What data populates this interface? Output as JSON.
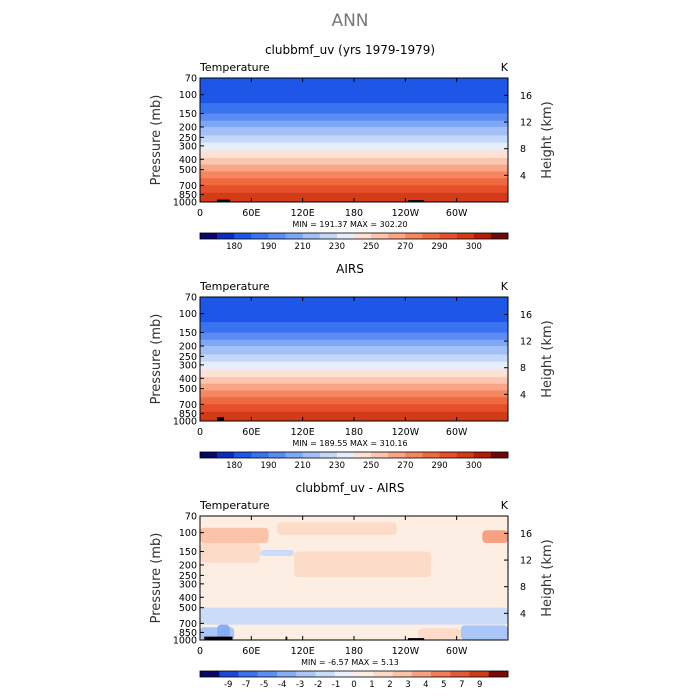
{
  "figure_title": "ANN",
  "colors": {
    "full_field_palette": [
      "#08086b",
      "#0a2dbd",
      "#1e56e8",
      "#3a73f0",
      "#5a8cf3",
      "#7ea7f5",
      "#a2c0f7",
      "#c4d8f9",
      "#e6eefc",
      "#fde2d5",
      "#fbc5ae",
      "#f8a685",
      "#f5865f",
      "#f06a40",
      "#e5502a",
      "#d33a18",
      "#b01e0b",
      "#6e0a06"
    ],
    "difference_palette": [
      "#08086b",
      "#1e46d8",
      "#3c73ee",
      "#5c8ff2",
      "#86adf5",
      "#aac6f8",
      "#cbdcf9",
      "#e8f0fc",
      "#fdeee3",
      "#fcdcc8",
      "#fbc3a8",
      "#f8a182",
      "#f27c58",
      "#e35a36",
      "#cf3a1a",
      "#7a0a06"
    ]
  },
  "chart_data": [
    {
      "type": "heatmap",
      "title": "clubbmf_uv (yrs 1979-1979)",
      "left_label": "Temperature",
      "right_label": "K",
      "ylabel": "Pressure (mb)",
      "ylabel_right": "Height (km)",
      "x_ticks": [
        "0",
        "60E",
        "120E",
        "180",
        "120W",
        "60W"
      ],
      "y_ticks": [
        "70",
        "100",
        "150",
        "200",
        "250",
        "300",
        "400",
        "500",
        "700",
        "850",
        "1000"
      ],
      "y_right_ticks": [
        "4",
        "8",
        "12",
        "16"
      ],
      "stats_text": "MIN = 191.37   MAX = 302.20",
      "colorbar_ticks": [
        "180",
        "190",
        "210",
        "230",
        "250",
        "270",
        "290",
        "300"
      ],
      "colorbar_palette": "full_field_palette",
      "min": 191.37,
      "max": 302.2,
      "temperature_profile": [
        {
          "p": 70,
          "color_index": 2
        },
        {
          "p": 100,
          "color_index": 2
        },
        {
          "p": 120,
          "color_index": 3
        },
        {
          "p": 150,
          "color_index": 4
        },
        {
          "p": 175,
          "color_index": 5
        },
        {
          "p": 200,
          "color_index": 6
        },
        {
          "p": 240,
          "color_index": 7
        },
        {
          "p": 280,
          "color_index": 8
        },
        {
          "p": 330,
          "color_index": 9
        },
        {
          "p": 390,
          "color_index": 10
        },
        {
          "p": 450,
          "color_index": 11
        },
        {
          "p": 520,
          "color_index": 12
        },
        {
          "p": 600,
          "color_index": 13
        },
        {
          "p": 700,
          "color_index": 14
        },
        {
          "p": 820,
          "color_index": 15
        },
        {
          "p": 1000,
          "color_index": 15
        }
      ],
      "terrain": [
        {
          "lon_from": 20,
          "lon_to": 35,
          "top_p": 950
        },
        {
          "lon_from": 243,
          "lon_to": 262,
          "top_p": 960
        }
      ]
    },
    {
      "type": "heatmap",
      "title": "AIRS",
      "left_label": "Temperature",
      "right_label": "K",
      "ylabel": "Pressure (mb)",
      "ylabel_right": "Height (km)",
      "x_ticks": [
        "0",
        "60E",
        "120E",
        "180",
        "120W",
        "60W"
      ],
      "y_ticks": [
        "70",
        "100",
        "150",
        "200",
        "250",
        "300",
        "400",
        "500",
        "700",
        "850",
        "1000"
      ],
      "y_right_ticks": [
        "4",
        "8",
        "12",
        "16"
      ],
      "stats_text": "MIN = 189.55   MAX = 310.16",
      "colorbar_ticks": [
        "180",
        "190",
        "210",
        "230",
        "250",
        "270",
        "290",
        "300"
      ],
      "colorbar_palette": "full_field_palette",
      "min": 189.55,
      "max": 310.16,
      "temperature_profile": [
        {
          "p": 70,
          "color_index": 2
        },
        {
          "p": 100,
          "color_index": 2
        },
        {
          "p": 120,
          "color_index": 3
        },
        {
          "p": 150,
          "color_index": 4
        },
        {
          "p": 175,
          "color_index": 5
        },
        {
          "p": 200,
          "color_index": 6
        },
        {
          "p": 240,
          "color_index": 7
        },
        {
          "p": 280,
          "color_index": 8
        },
        {
          "p": 330,
          "color_index": 9
        },
        {
          "p": 390,
          "color_index": 10
        },
        {
          "p": 450,
          "color_index": 11
        },
        {
          "p": 520,
          "color_index": 12
        },
        {
          "p": 600,
          "color_index": 13
        },
        {
          "p": 700,
          "color_index": 14
        },
        {
          "p": 820,
          "color_index": 15
        },
        {
          "p": 1000,
          "color_index": 15
        }
      ],
      "terrain": [
        {
          "lon_from": 20,
          "lon_to": 28,
          "top_p": 920
        }
      ]
    },
    {
      "type": "heatmap",
      "title": "clubbmf_uv - AIRS",
      "left_label": "Temperature",
      "right_label": "K",
      "ylabel": "Pressure (mb)",
      "ylabel_right": "Height (km)",
      "x_ticks": [
        "0",
        "60E",
        "120E",
        "180",
        "120W",
        "60W"
      ],
      "y_ticks": [
        "70",
        "100",
        "150",
        "200",
        "250",
        "300",
        "400",
        "500",
        "700",
        "850",
        "1000"
      ],
      "y_right_ticks": [
        "4",
        "8",
        "12",
        "16"
      ],
      "stats_text": "MIN =   -6.57   MAX =     5.13",
      "colorbar_ticks": [
        "-9",
        "-7",
        "-5",
        "-4",
        "-3",
        "-2",
        "-1",
        "0",
        "1",
        "2",
        "3",
        "4",
        "5",
        "7",
        "9"
      ],
      "colorbar_palette": "difference_palette",
      "min": -6.57,
      "max": 5.13,
      "difference_regions": [
        {
          "lon_from": 0,
          "lon_to": 360,
          "p_top": 70,
          "p_bottom": 1000,
          "color_index": 8
        },
        {
          "lon_from": 0,
          "lon_to": 80,
          "p_top": 90,
          "p_bottom": 125,
          "color_index": 10
        },
        {
          "lon_from": 90,
          "lon_to": 230,
          "p_top": 80,
          "p_bottom": 105,
          "color_index": 9
        },
        {
          "lon_from": 330,
          "lon_to": 360,
          "p_top": 95,
          "p_bottom": 125,
          "color_index": 11
        },
        {
          "lon_from": 0,
          "lon_to": 70,
          "p_top": 125,
          "p_bottom": 190,
          "color_index": 9
        },
        {
          "lon_from": 110,
          "lon_to": 270,
          "p_top": 150,
          "p_bottom": 260,
          "color_index": 9
        },
        {
          "lon_from": 70,
          "lon_to": 110,
          "p_top": 145,
          "p_bottom": 165,
          "color_index": 6
        },
        {
          "lon_from": 0,
          "lon_to": 360,
          "p_top": 500,
          "p_bottom": 720,
          "color_index": 6
        },
        {
          "lon_from": 0,
          "lon_to": 40,
          "p_top": 760,
          "p_bottom": 1000,
          "color_index": 5
        },
        {
          "lon_from": 20,
          "lon_to": 35,
          "p_top": 720,
          "p_bottom": 950,
          "color_index": 4
        },
        {
          "lon_from": 255,
          "lon_to": 305,
          "p_top": 780,
          "p_bottom": 1000,
          "color_index": 9
        },
        {
          "lon_from": 305,
          "lon_to": 360,
          "p_top": 730,
          "p_bottom": 1000,
          "color_index": 5
        }
      ],
      "terrain": [
        {
          "lon_from": 5,
          "lon_to": 38,
          "top_p": 930
        },
        {
          "lon_from": 243,
          "lon_to": 262,
          "top_p": 960
        },
        {
          "lon_from": 100,
          "lon_to": 102,
          "top_p": 930
        }
      ]
    }
  ]
}
